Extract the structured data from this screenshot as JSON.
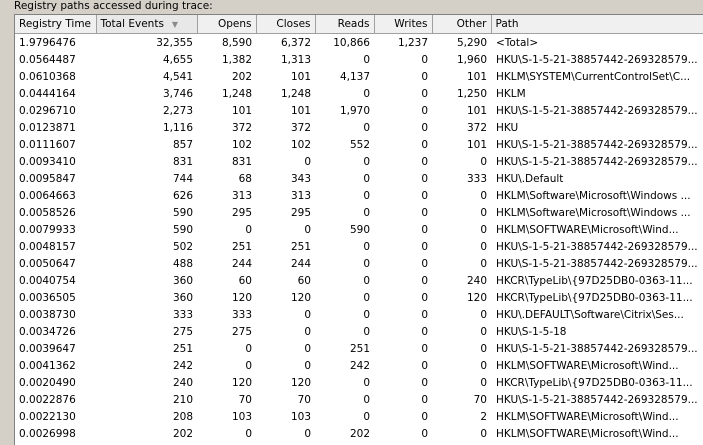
{
  "group_label": "Registry paths accessed during trace:",
  "columns": {
    "time": "Registry Time",
    "events": "Total Events",
    "opens": "Opens",
    "closes": "Closes",
    "reads": "Reads",
    "writes": "Writes",
    "other": "Other",
    "path": "Path"
  },
  "sort_icon": "sort-descending-arrow",
  "rows": [
    {
      "time": "1.9796476",
      "events": "32,355",
      "opens": "8,590",
      "closes": "6,372",
      "reads": "10,866",
      "writes": "1,237",
      "other": "5,290",
      "path": "<Total>"
    },
    {
      "time": "0.0564487",
      "events": "4,655",
      "opens": "1,382",
      "closes": "1,313",
      "reads": "0",
      "writes": "0",
      "other": "1,960",
      "path": "HKU\\S-1-5-21-38857442-269328579..."
    },
    {
      "time": "0.0610368",
      "events": "4,541",
      "opens": "202",
      "closes": "101",
      "reads": "4,137",
      "writes": "0",
      "other": "101",
      "path": "HKLM\\SYSTEM\\CurrentControlSet\\C..."
    },
    {
      "time": "0.0444164",
      "events": "3,746",
      "opens": "1,248",
      "closes": "1,248",
      "reads": "0",
      "writes": "0",
      "other": "1,250",
      "path": "HKLM"
    },
    {
      "time": "0.0296710",
      "events": "2,273",
      "opens": "101",
      "closes": "101",
      "reads": "1,970",
      "writes": "0",
      "other": "101",
      "path": "HKU\\S-1-5-21-38857442-269328579..."
    },
    {
      "time": "0.0123871",
      "events": "1,116",
      "opens": "372",
      "closes": "372",
      "reads": "0",
      "writes": "0",
      "other": "372",
      "path": "HKU"
    },
    {
      "time": "0.0111607",
      "events": "857",
      "opens": "102",
      "closes": "102",
      "reads": "552",
      "writes": "0",
      "other": "101",
      "path": "HKU\\S-1-5-21-38857442-269328579..."
    },
    {
      "time": "0.0093410",
      "events": "831",
      "opens": "831",
      "closes": "0",
      "reads": "0",
      "writes": "0",
      "other": "0",
      "path": "HKU\\S-1-5-21-38857442-269328579..."
    },
    {
      "time": "0.0095847",
      "events": "744",
      "opens": "68",
      "closes": "343",
      "reads": "0",
      "writes": "0",
      "other": "333",
      "path": "HKU\\.Default"
    },
    {
      "time": "0.0064663",
      "events": "626",
      "opens": "313",
      "closes": "313",
      "reads": "0",
      "writes": "0",
      "other": "0",
      "path": "HKLM\\Software\\Microsoft\\Windows ..."
    },
    {
      "time": "0.0058526",
      "events": "590",
      "opens": "295",
      "closes": "295",
      "reads": "0",
      "writes": "0",
      "other": "0",
      "path": "HKLM\\Software\\Microsoft\\Windows ..."
    },
    {
      "time": "0.0079933",
      "events": "590",
      "opens": "0",
      "closes": "0",
      "reads": "590",
      "writes": "0",
      "other": "0",
      "path": "HKLM\\SOFTWARE\\Microsoft\\Wind..."
    },
    {
      "time": "0.0048157",
      "events": "502",
      "opens": "251",
      "closes": "251",
      "reads": "0",
      "writes": "0",
      "other": "0",
      "path": "HKU\\S-1-5-21-38857442-269328579..."
    },
    {
      "time": "0.0050647",
      "events": "488",
      "opens": "244",
      "closes": "244",
      "reads": "0",
      "writes": "0",
      "other": "0",
      "path": "HKU\\S-1-5-21-38857442-269328579..."
    },
    {
      "time": "0.0040754",
      "events": "360",
      "opens": "60",
      "closes": "60",
      "reads": "0",
      "writes": "0",
      "other": "240",
      "path": "HKCR\\TypeLib\\{97D25DB0-0363-11..."
    },
    {
      "time": "0.0036505",
      "events": "360",
      "opens": "120",
      "closes": "120",
      "reads": "0",
      "writes": "0",
      "other": "120",
      "path": "HKCR\\TypeLib\\{97D25DB0-0363-11..."
    },
    {
      "time": "0.0038730",
      "events": "333",
      "opens": "333",
      "closes": "0",
      "reads": "0",
      "writes": "0",
      "other": "0",
      "path": "HKU\\.DEFAULT\\Software\\Citrix\\Ses..."
    },
    {
      "time": "0.0034726",
      "events": "275",
      "opens": "275",
      "closes": "0",
      "reads": "0",
      "writes": "0",
      "other": "0",
      "path": "HKU\\S-1-5-18"
    },
    {
      "time": "0.0039647",
      "events": "251",
      "opens": "0",
      "closes": "0",
      "reads": "251",
      "writes": "0",
      "other": "0",
      "path": "HKU\\S-1-5-21-38857442-269328579..."
    },
    {
      "time": "0.0041362",
      "events": "242",
      "opens": "0",
      "closes": "0",
      "reads": "242",
      "writes": "0",
      "other": "0",
      "path": "HKLM\\SOFTWARE\\Microsoft\\Wind..."
    },
    {
      "time": "0.0020490",
      "events": "240",
      "opens": "120",
      "closes": "120",
      "reads": "0",
      "writes": "0",
      "other": "0",
      "path": "HKCR\\TypeLib\\{97D25DB0-0363-11..."
    },
    {
      "time": "0.0022876",
      "events": "210",
      "opens": "70",
      "closes": "70",
      "reads": "0",
      "writes": "0",
      "other": "70",
      "path": "HKU\\S-1-5-21-38857442-269328579..."
    },
    {
      "time": "0.0022130",
      "events": "208",
      "opens": "103",
      "closes": "103",
      "reads": "0",
      "writes": "0",
      "other": "2",
      "path": "HKLM\\SOFTWARE\\Microsoft\\Wind..."
    },
    {
      "time": "0.0026998",
      "events": "202",
      "opens": "0",
      "closes": "0",
      "reads": "202",
      "writes": "0",
      "other": "0",
      "path": "HKLM\\SOFTWARE\\Microsoft\\Wind..."
    }
  ]
}
